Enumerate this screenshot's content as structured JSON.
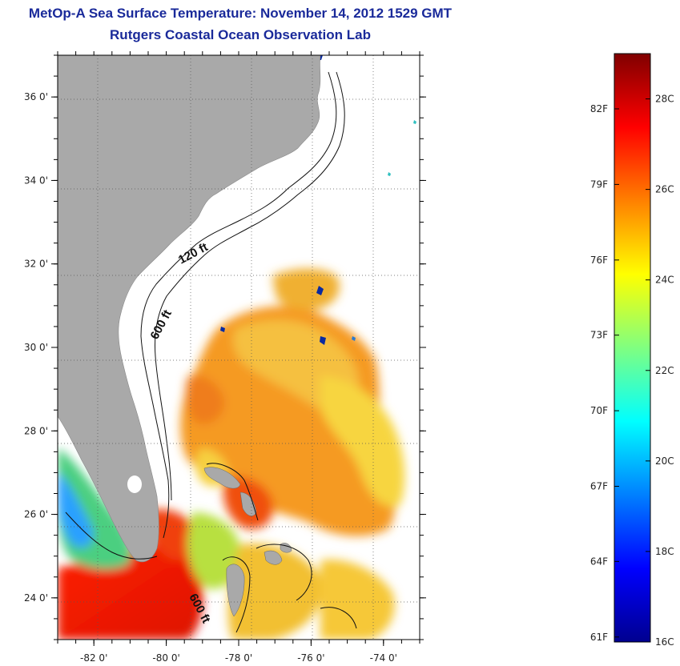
{
  "header": {
    "title": "MetOp-A Sea Surface Temperature:  November 14, 2012 1529 GMT",
    "subtitle": "Rutgers Coastal Ocean Observation Lab"
  },
  "map": {
    "lon_range": [
      -83,
      -73
    ],
    "lat_range": [
      23,
      37
    ],
    "lon_ticks": [
      {
        "value": -82,
        "label": "-82 0'"
      },
      {
        "value": -80,
        "label": "-80 0'"
      },
      {
        "value": -78,
        "label": "-78 0'"
      },
      {
        "value": -76,
        "label": "-76 0'"
      },
      {
        "value": -74,
        "label": "-74 0'"
      }
    ],
    "lat_ticks": [
      {
        "value": 36,
        "label": "36 0'"
      },
      {
        "value": 34,
        "label": "34 0'"
      },
      {
        "value": 32,
        "label": "32 0'"
      },
      {
        "value": 30,
        "label": "30 0'"
      },
      {
        "value": 28,
        "label": "28 0'"
      },
      {
        "value": 26,
        "label": "26 0'"
      },
      {
        "value": 24,
        "label": "24 0'"
      }
    ],
    "contour_labels": {
      "shelf_120": "120 ft",
      "shelf_600_north": "600 ft",
      "shelf_600_south": "600 ft"
    },
    "colors": {
      "land": "#a9a9a9",
      "ocean_nodata": "#ffffff",
      "contour": "#111111",
      "grid": "#555555"
    }
  },
  "colorbar": {
    "min_c": 16,
    "max_c": 29,
    "fahrenheit_labels": [
      {
        "value_c": 16.11,
        "label": "61F"
      },
      {
        "value_c": 17.78,
        "label": "64F"
      },
      {
        "value_c": 19.44,
        "label": "67F"
      },
      {
        "value_c": 21.11,
        "label": "70F"
      },
      {
        "value_c": 22.78,
        "label": "73F"
      },
      {
        "value_c": 24.44,
        "label": "76F"
      },
      {
        "value_c": 26.11,
        "label": "79F"
      },
      {
        "value_c": 27.78,
        "label": "82F"
      }
    ],
    "celsius_labels": [
      {
        "value_c": 16,
        "label": "16C"
      },
      {
        "value_c": 18,
        "label": "18C"
      },
      {
        "value_c": 20,
        "label": "20C"
      },
      {
        "value_c": 22,
        "label": "22C"
      },
      {
        "value_c": 24,
        "label": "24C"
      },
      {
        "value_c": 26,
        "label": "26C"
      },
      {
        "value_c": 28,
        "label": "28C"
      }
    ],
    "colormap": [
      "#00008f",
      "#0000ff",
      "#0080ff",
      "#00ffff",
      "#80ff80",
      "#ffff00",
      "#ff8000",
      "#ff0000",
      "#800000"
    ]
  }
}
